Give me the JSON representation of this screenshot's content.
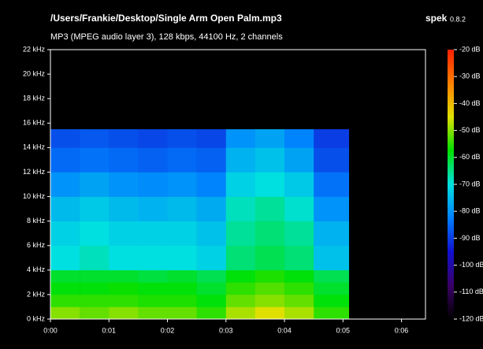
{
  "chart_data": {
    "type": "spectrogram",
    "title": "/Users/Frankie/Desktop/Single Arm Open Palm.mp3",
    "subtitle": "MP3 (MPEG audio layer 3), 128 kbps, 44100 Hz, 2 channels",
    "app_name": "spek",
    "app_version": "0.8.2",
    "x_edges": [
      0,
      0.5,
      1,
      1.5,
      2,
      2.5,
      3,
      3.5,
      4,
      4.5,
      5.1
    ],
    "y_edges": [
      0,
      1,
      2,
      3,
      4,
      6,
      8,
      10,
      12,
      14,
      15.5
    ],
    "values": [
      [
        -50,
        -52,
        -50,
        -52,
        -52,
        -55,
        -48,
        -45,
        -48,
        -55
      ],
      [
        -55,
        -55,
        -55,
        -56,
        -56,
        -58,
        -52,
        -50,
        -52,
        -58
      ],
      [
        -58,
        -58,
        -57,
        -58,
        -58,
        -60,
        -55,
        -53,
        -55,
        -60
      ],
      [
        -60,
        -60,
        -60,
        -61,
        -60,
        -62,
        -58,
        -56,
        -58,
        -62
      ],
      [
        -70,
        -68,
        -70,
        -70,
        -70,
        -72,
        -64,
        -62,
        -64,
        -74
      ],
      [
        -72,
        -70,
        -72,
        -72,
        -72,
        -74,
        -66,
        -64,
        -66,
        -76
      ],
      [
        -75,
        -73,
        -75,
        -76,
        -75,
        -77,
        -68,
        -66,
        -69,
        -80
      ],
      [
        -80,
        -78,
        -80,
        -81,
        -80,
        -82,
        -72,
        -70,
        -73,
        -84
      ],
      [
        -85,
        -84,
        -85,
        -86,
        -85,
        -86,
        -76,
        -74,
        -78,
        -88
      ],
      [
        -88,
        -87,
        -88,
        -89,
        -88,
        -89,
        -80,
        -78,
        -82,
        -90
      ]
    ],
    "xlim": [
      0,
      6.41
    ],
    "xticks": [
      {
        "value": 0,
        "label": "0:00"
      },
      {
        "value": 1,
        "label": "0:01"
      },
      {
        "value": 2,
        "label": "0:02"
      },
      {
        "value": 3,
        "label": "0:03"
      },
      {
        "value": 4,
        "label": "0:04"
      },
      {
        "value": 5,
        "label": "0:05"
      },
      {
        "value": 6,
        "label": "0:06"
      }
    ],
    "ylim": [
      0,
      22
    ],
    "yticks": [
      {
        "value": 0,
        "label": "0 kHz"
      },
      {
        "value": 2,
        "label": "2 kHz"
      },
      {
        "value": 4,
        "label": "4 kHz"
      },
      {
        "value": 6,
        "label": "6 kHz"
      },
      {
        "value": 8,
        "label": "8 kHz"
      },
      {
        "value": 10,
        "label": "10 kHz"
      },
      {
        "value": 12,
        "label": "12 kHz"
      },
      {
        "value": 14,
        "label": "14 kHz"
      },
      {
        "value": 16,
        "label": "16 kHz"
      },
      {
        "value": 18,
        "label": "18 kHz"
      },
      {
        "value": 20,
        "label": "20 kHz"
      },
      {
        "value": 22,
        "label": "22 kHz"
      }
    ],
    "zlim": [
      -120,
      -20
    ],
    "zticks": [
      {
        "value": -20,
        "label": "-20 dB"
      },
      {
        "value": -30,
        "label": "-30 dB"
      },
      {
        "value": -40,
        "label": "-40 dB"
      },
      {
        "value": -50,
        "label": "-50 dB"
      },
      {
        "value": -60,
        "label": "-60 dB"
      },
      {
        "value": -70,
        "label": "-70 dB"
      },
      {
        "value": -80,
        "label": "-80 dB"
      },
      {
        "value": -90,
        "label": "-90 dB"
      },
      {
        "value": -100,
        "label": "-100 dB"
      },
      {
        "value": -110,
        "label": "-110 dB"
      },
      {
        "value": -120,
        "label": "-120 dB"
      }
    ],
    "colormap": [
      "#000000",
      "#3a0066",
      "#1010d0",
      "#0080ff",
      "#00e0e0",
      "#00e000",
      "#e0e000",
      "#ff8000",
      "#ff2000"
    ]
  }
}
